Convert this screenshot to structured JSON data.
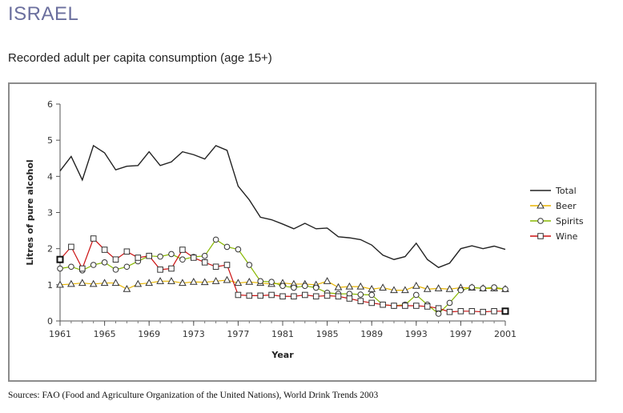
{
  "header": {
    "country": "ISRAEL",
    "subtitle": "Recorded adult per capita consumption (age 15+)"
  },
  "footer": {
    "sources": "Sources: FAO (Food and Agriculture Organization of the United Nations), World Drink Trends 2003"
  },
  "chart_data": {
    "type": "line",
    "xlabel": "Year",
    "ylabel": "Litres of pure alcohol",
    "xlim": [
      1961,
      2001
    ],
    "ylim": [
      0,
      6
    ],
    "xticks": [
      1961,
      1965,
      1969,
      1973,
      1977,
      1981,
      1985,
      1989,
      1993,
      1997,
      2001
    ],
    "yticks": [
      0,
      1,
      2,
      3,
      4,
      5,
      6
    ],
    "grid": false,
    "legend": "right",
    "x": [
      1961,
      1962,
      1963,
      1964,
      1965,
      1966,
      1967,
      1968,
      1969,
      1970,
      1971,
      1972,
      1973,
      1974,
      1975,
      1976,
      1977,
      1978,
      1979,
      1980,
      1981,
      1982,
      1983,
      1984,
      1985,
      1986,
      1987,
      1988,
      1989,
      1990,
      1991,
      1992,
      1993,
      1994,
      1995,
      1996,
      1997,
      1998,
      1999,
      2000,
      2001
    ],
    "series": [
      {
        "name": "Total",
        "color": "#222222",
        "marker": "none",
        "values": [
          4.15,
          4.55,
          3.9,
          4.85,
          4.65,
          4.18,
          4.28,
          4.3,
          4.68,
          4.3,
          4.4,
          4.68,
          4.6,
          4.48,
          4.85,
          4.72,
          3.73,
          3.35,
          2.87,
          2.8,
          2.68,
          2.55,
          2.7,
          2.55,
          2.57,
          2.33,
          2.3,
          2.25,
          2.1,
          1.82,
          1.7,
          1.78,
          2.15,
          1.7,
          1.48,
          1.6,
          2.0,
          2.08,
          2.0,
          2.07,
          1.98
        ]
      },
      {
        "name": "Beer",
        "color": "#e8b400",
        "marker": "triangle",
        "values": [
          1.0,
          1.02,
          1.05,
          1.02,
          1.05,
          1.05,
          0.88,
          1.02,
          1.05,
          1.1,
          1.1,
          1.05,
          1.08,
          1.07,
          1.1,
          1.13,
          1.05,
          1.08,
          1.05,
          1.02,
          1.05,
          1.02,
          1.02,
          1.0,
          1.1,
          0.93,
          0.95,
          0.95,
          0.88,
          0.92,
          0.85,
          0.85,
          0.97,
          0.88,
          0.9,
          0.88,
          0.92,
          0.92,
          0.9,
          0.9,
          0.88
        ]
      },
      {
        "name": "Spirits",
        "color": "#88b800",
        "marker": "circle",
        "values": [
          1.45,
          1.5,
          1.4,
          1.55,
          1.62,
          1.42,
          1.5,
          1.65,
          1.8,
          1.78,
          1.85,
          1.7,
          1.77,
          1.8,
          2.25,
          2.05,
          1.98,
          1.55,
          1.1,
          1.08,
          0.97,
          0.92,
          0.97,
          0.92,
          0.78,
          0.75,
          0.75,
          0.73,
          0.72,
          0.45,
          0.42,
          0.45,
          0.72,
          0.45,
          0.2,
          0.5,
          0.85,
          0.93,
          0.9,
          0.93,
          0.88
        ]
      },
      {
        "name": "Wine",
        "color": "#cc1111",
        "marker": "square",
        "values": [
          1.7,
          2.05,
          1.45,
          2.28,
          1.97,
          1.7,
          1.92,
          1.75,
          1.8,
          1.42,
          1.45,
          1.97,
          1.75,
          1.62,
          1.5,
          1.55,
          0.72,
          0.7,
          0.7,
          0.72,
          0.68,
          0.68,
          0.72,
          0.68,
          0.7,
          0.68,
          0.62,
          0.55,
          0.5,
          0.45,
          0.42,
          0.42,
          0.42,
          0.4,
          0.35,
          0.25,
          0.27,
          0.27,
          0.25,
          0.27,
          0.27
        ]
      }
    ]
  }
}
